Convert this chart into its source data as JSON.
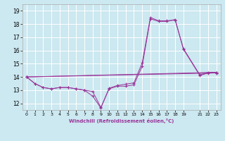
{
  "xlabel": "Windchill (Refroidissement éolien,°C)",
  "background_color": "#cce8f0",
  "grid_color": "#ffffff",
  "line_color": "#993399",
  "xlim": [
    -0.5,
    23.5
  ],
  "ylim": [
    11.5,
    19.5
  ],
  "xticks": [
    0,
    1,
    2,
    3,
    4,
    5,
    6,
    7,
    8,
    9,
    10,
    11,
    12,
    13,
    14,
    15,
    16,
    17,
    18,
    19,
    21,
    22,
    23
  ],
  "yticks": [
    12,
    13,
    14,
    15,
    16,
    17,
    18,
    19
  ],
  "line1_x": [
    0,
    1,
    2,
    3,
    4,
    5,
    6,
    7,
    8,
    9,
    10,
    11,
    12,
    13,
    14,
    15,
    16,
    17,
    18,
    19,
    21,
    22,
    23
  ],
  "line1_y": [
    14.0,
    13.5,
    13.2,
    13.1,
    13.2,
    13.2,
    13.1,
    13.0,
    12.9,
    11.7,
    13.1,
    13.3,
    13.3,
    13.4,
    14.8,
    18.4,
    18.2,
    18.2,
    18.35,
    16.1,
    14.1,
    14.3,
    14.3
  ],
  "line2_x": [
    0,
    1,
    2,
    3,
    4,
    5,
    6,
    7,
    8,
    9,
    10,
    11,
    12,
    13,
    14,
    15,
    16,
    17,
    18,
    19,
    21,
    22,
    23
  ],
  "line2_y": [
    14.0,
    13.5,
    13.2,
    13.1,
    13.2,
    13.2,
    13.1,
    13.0,
    12.55,
    11.65,
    13.15,
    13.35,
    13.45,
    13.55,
    15.05,
    18.5,
    18.25,
    18.25,
    18.3,
    16.15,
    14.15,
    14.35,
    14.35
  ],
  "line3_x": [
    0,
    23
  ],
  "line3_y": [
    14.0,
    14.3
  ],
  "line4_x": [
    0,
    23
  ],
  "line4_y": [
    14.0,
    14.35
  ]
}
